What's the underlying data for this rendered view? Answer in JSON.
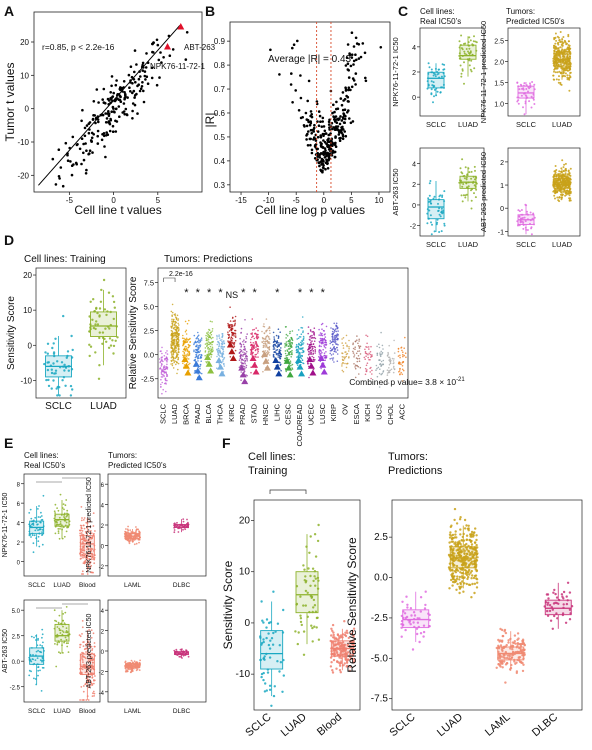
{
  "figure": {
    "panel_letters": [
      "A",
      "B",
      "C",
      "D",
      "E",
      "F"
    ],
    "panel_A": {
      "annotation": "r=0.85, p < 2.2e-16",
      "label_abt": "ABT-263",
      "label_npk": "NPK76-11-72-1"
    },
    "panel_B": {
      "annotation": "Average |R| = 0.43"
    },
    "panel_C": {
      "header_left_1": "Cell lines:",
      "header_left_2": "Real IC50’s",
      "header_right_1": "Tumors:",
      "header_right_2": "Predicted IC50’s",
      "ylabels": [
        "NPK76-11-72-1 IC50",
        "NPK76-11-72-1 predicted IC50",
        "ABT-263 IC50",
        "ABT-263 predicted IC50"
      ]
    },
    "panel_D": {
      "header_left": "Cell lines: Training",
      "header_right": "Tumors: Predictions",
      "pvalue_top": "2.2e-16",
      "ns_label": "NS",
      "combined": "Combined p value= 3.8 × 10^-21"
    },
    "panel_E": {
      "header_left_1": "Cell lines:",
      "header_left_2": "Real IC50’s",
      "header_right_1": "Tumors:",
      "header_right_2": "Predicted IC50’s",
      "ylabels": [
        "NPK76-11-72-1 IC50",
        "NPK76-11-72-1 predicted IC50",
        "ABT-263 IC50",
        "ABT-263 predicted IC50"
      ]
    },
    "panel_F": {
      "header_left_1": "Cell lines:",
      "header_left_2": "Training",
      "header_right_1": "Tumors:",
      "header_right_2": "Predictions"
    }
  },
  "chart_data": [
    {
      "panel": "A",
      "type": "scatter",
      "xlabel": "Cell line t values",
      "ylabel": "Tumor t values",
      "xlim": [
        -9,
        10
      ],
      "ylim": [
        -25,
        29
      ],
      "xticks": [
        -5,
        0,
        5
      ],
      "yticks": [
        -20,
        -10,
        0,
        10,
        20
      ],
      "fit_line": [
        [
          -8.5,
          -23
        ],
        [
          7.5,
          25
        ]
      ],
      "highlight": [
        {
          "name": "ABT-263",
          "x": 7.6,
          "y": 24.5
        },
        {
          "name": "NPK76-11-72-1",
          "x": 6.1,
          "y": 18.5
        }
      ]
    },
    {
      "panel": "B",
      "type": "scatter",
      "xlabel": "Cell line log p values",
      "ylabel": "|R|",
      "xlim": [
        -17,
        12
      ],
      "ylim": [
        0.27,
        0.98
      ],
      "xticks": [
        -15,
        -10,
        -5,
        0,
        5,
        10
      ],
      "yticks": [
        0.3,
        0.4,
        0.5,
        0.6,
        0.7,
        0.8,
        0.9
      ],
      "vlines": [
        -1.3,
        1.3
      ]
    },
    {
      "panel": "C",
      "type": "box",
      "plots": [
        {
          "ylabel": "NPK76-11-72-1 IC50",
          "yticks": [
            "4",
            "2",
            "0"
          ],
          "categories": [
            "SCLC",
            "LUAD"
          ],
          "medians": [
            1.5,
            3.3
          ],
          "ylim": [
            -1.5,
            5.5
          ]
        },
        {
          "ylabel": "NPK76-11-72-1 predicted IC50",
          "yticks": [
            "2.5",
            "2.0",
            "1.5",
            "1.0"
          ],
          "categories": [
            "SCLC",
            "LUAD"
          ],
          "medians": [
            1.25,
            2.05
          ],
          "ylim": [
            0.7,
            2.8
          ]
        },
        {
          "ylabel": "ABT-263 IC50",
          "yticks": [
            "4",
            "2",
            "0",
            "-2"
          ],
          "categories": [
            "SCLC",
            "LUAD"
          ],
          "medians": [
            -0.2,
            2.2
          ],
          "ylim": [
            -3,
            5.5
          ]
        },
        {
          "ylabel": "ABT-263 predicted IC50",
          "yticks": [
            "2",
            "1",
            "0",
            "-1"
          ],
          "categories": [
            "SCLC",
            "LUAD"
          ],
          "medians": [
            -0.5,
            1.1
          ],
          "ylim": [
            -1.2,
            2.6
          ]
        }
      ]
    },
    {
      "panel": "D-left",
      "type": "box",
      "ylabel": "Sensitivity Score",
      "categories": [
        "SCLC",
        "LUAD"
      ],
      "yticks": [
        "-10",
        "0",
        "10",
        "20"
      ],
      "ylim": [
        -15,
        22
      ],
      "medians": [
        -6,
        5.5
      ],
      "q1": [
        -9,
        2.5
      ],
      "q3": [
        -3,
        9.5
      ]
    },
    {
      "panel": "D-right",
      "type": "strip",
      "ylabel": "Relative Sensitivity Score",
      "categories": [
        "SCLC",
        "LUAD",
        "BRCA",
        "PAAD",
        "BLCA",
        "THCA",
        "KIRC",
        "PRAD",
        "STAD",
        "HNSC",
        "LIHC",
        "CESC",
        "COADREAD",
        "UCEC",
        "LUSC",
        "KIRP",
        "OV",
        "ESCA",
        "KICH",
        "UCS",
        "CHOL",
        "ACC"
      ],
      "yticks": [
        "-2.5",
        "0.0",
        "2.5",
        "5.0",
        "7.5"
      ],
      "ylim": [
        -4.5,
        9
      ],
      "centers": [
        -1.5,
        1.5,
        0.7,
        0.2,
        0.9,
        0.6,
        2.2,
        -0.2,
        0.8,
        1.2,
        0.6,
        0.5,
        0.6,
        0.7,
        0.8,
        1.5,
        0.0,
        0.0,
        -0.3,
        -0.5,
        -0.8,
        -0.5
      ],
      "stars": [
        "",
        "",
        "*",
        "*",
        "*",
        "*",
        "NS",
        "*",
        "*",
        "",
        "*",
        "",
        "*",
        "*",
        "*",
        "",
        "",
        "",
        "",
        "",
        "",
        ""
      ]
    },
    {
      "panel": "E",
      "type": "box",
      "plots": [
        {
          "ylabel": "NPK76-11-72-1 IC50",
          "categories": [
            "SCLC",
            "LUAD",
            "Blood"
          ],
          "yticks": [
            "8",
            "6",
            "4",
            "2",
            "0"
          ],
          "medians": [
            3.5,
            4.3,
            1.8
          ],
          "ylim": [
            -1.5,
            9
          ]
        },
        {
          "ylabel": "NPK76-11-72-1 predicted IC50",
          "categories": [
            "LAML",
            "DLBC"
          ],
          "yticks": [
            "6",
            "4",
            "2",
            "0",
            "-2"
          ],
          "medians": [
            0.9,
            1.9
          ],
          "ylim": [
            -3,
            7
          ]
        },
        {
          "ylabel": "ABT-263 IC50",
          "categories": [
            "SCLC",
            "LUAD",
            "Blood"
          ],
          "yticks": [
            "5.0",
            "2.5",
            "0.0",
            "-2.5"
          ],
          "medians": [
            0.5,
            2.5,
            -0.5
          ],
          "ylim": [
            -4,
            6
          ]
        },
        {
          "ylabel": "ABT-263 predicted IC50",
          "categories": [
            "LAML",
            "DLBC"
          ],
          "yticks": [
            "4",
            "2",
            "0",
            "-2",
            "-4"
          ],
          "medians": [
            -1.5,
            -0.2
          ],
          "ylim": [
            -5,
            5
          ]
        }
      ]
    },
    {
      "panel": "F-left",
      "type": "box",
      "ylabel": "Sensitivity Score",
      "categories": [
        "SCLC",
        "LUAD",
        "Blood"
      ],
      "yticks": [
        "20",
        "10",
        "0",
        "-10"
      ],
      "ylim": [
        -17,
        24
      ],
      "medians": [
        -6,
        5.5,
        -5
      ],
      "q1": [
        -9,
        2,
        -6.5
      ],
      "q3": [
        -1.5,
        10,
        -3.5
      ]
    },
    {
      "panel": "F-right",
      "type": "box",
      "ylabel": "Relative Sensitivity Score",
      "categories": [
        "SCLC",
        "LUAD",
        "LAML",
        "DLBC"
      ],
      "yticks": [
        "2.5",
        "0.0",
        "-2.5",
        "-5.0",
        "-7.5"
      ],
      "ylim": [
        -8.2,
        4.8
      ],
      "medians": [
        -2.6,
        1.2,
        -4.7,
        -1.9
      ],
      "q1": [
        -3.1,
        0.6,
        -5.1,
        -2.3
      ],
      "q3": [
        -2.0,
        1.9,
        -4.3,
        -1.4
      ]
    }
  ],
  "colors": {
    "sclc": "#1aa8c2",
    "luad": "#8db22a",
    "tumor_pink": "#e06ce0",
    "tumor_gold": "#c9a21a",
    "blood": "#f08070",
    "laml": "#f08a72",
    "dlbc": "#c8327a",
    "fit_line": "#000000",
    "highlight": "#e0102a",
    "vline": "#d84a2a"
  }
}
